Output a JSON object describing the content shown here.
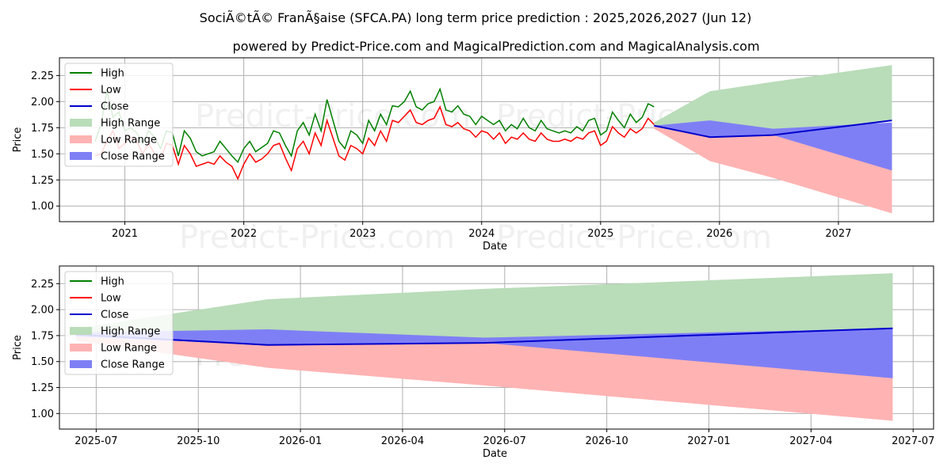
{
  "title": "SociÃ©tÃ© FranÃ§aise (SFCA.PA) long term price prediction : 2025,2026,2027 (Jun 12)",
  "subtitle": "powered by Predict-Price.com and MagicalPrediction.com and MagicalAnalysis.com",
  "watermark": "Predict-Price.com",
  "colors": {
    "high": "#008000",
    "low": "#ff0000",
    "close": "#0000cc",
    "high_range": "#b9dcb9",
    "low_range": "#ffb3b3",
    "close_range": "#7f7ff5",
    "grid": "#b0b0b0"
  },
  "chart_data": [
    {
      "type": "line",
      "panel": "top",
      "xlabel": "Date",
      "ylabel": "Price",
      "xlim": [
        2020.45,
        2027.8
      ],
      "ylim": [
        0.85,
        2.42
      ],
      "x_ticks": [
        2021,
        2022,
        2023,
        2024,
        2025,
        2026,
        2027
      ],
      "x_tick_labels": [
        "2021",
        "2022",
        "2023",
        "2024",
        "2025",
        "2026",
        "2027"
      ],
      "y_ticks": [
        1.0,
        1.25,
        1.5,
        1.75,
        2.0,
        2.25
      ],
      "y_tick_labels": [
        "1.00",
        "1.25",
        "1.50",
        "1.75",
        "2.00",
        "2.25"
      ],
      "legend": [
        "High",
        "Low",
        "Close",
        "High Range",
        "Low Range",
        "Close Range"
      ],
      "legend_position": "top-left",
      "history": {
        "x": [
          2020.75,
          2020.8,
          2020.85,
          2020.9,
          2020.95,
          2021.0,
          2021.05,
          2021.1,
          2021.15,
          2021.2,
          2021.25,
          2021.3,
          2021.35,
          2021.4,
          2021.45,
          2021.5,
          2021.55,
          2021.6,
          2021.65,
          2021.7,
          2021.75,
          2021.8,
          2021.85,
          2021.9,
          2021.95,
          2022.0,
          2022.05,
          2022.1,
          2022.15,
          2022.2,
          2022.25,
          2022.3,
          2022.35,
          2022.4,
          2022.45,
          2022.5,
          2022.55,
          2022.6,
          2022.65,
          2022.7,
          2022.75,
          2022.8,
          2022.85,
          2022.9,
          2022.95,
          2023.0,
          2023.05,
          2023.1,
          2023.15,
          2023.2,
          2023.25,
          2023.3,
          2023.35,
          2023.4,
          2023.45,
          2023.5,
          2023.55,
          2023.6,
          2023.65,
          2023.7,
          2023.75,
          2023.8,
          2023.85,
          2023.9,
          2023.95,
          2024.0,
          2024.05,
          2024.1,
          2024.15,
          2024.2,
          2024.25,
          2024.3,
          2024.35,
          2024.4,
          2024.45,
          2024.5,
          2024.55,
          2024.6,
          2024.65,
          2024.7,
          2024.75,
          2024.8,
          2024.85,
          2024.9,
          2024.95,
          2025.0,
          2025.05,
          2025.1,
          2025.15,
          2025.2,
          2025.25,
          2025.3,
          2025.35,
          2025.4,
          2025.45
        ],
        "high": [
          1.62,
          1.78,
          2.1,
          1.85,
          1.9,
          1.72,
          1.75,
          1.7,
          1.6,
          1.72,
          1.66,
          1.55,
          1.72,
          1.7,
          1.48,
          1.72,
          1.65,
          1.52,
          1.48,
          1.5,
          1.52,
          1.62,
          1.55,
          1.48,
          1.42,
          1.55,
          1.62,
          1.52,
          1.56,
          1.6,
          1.72,
          1.7,
          1.58,
          1.48,
          1.72,
          1.8,
          1.68,
          1.88,
          1.72,
          2.02,
          1.82,
          1.62,
          1.55,
          1.72,
          1.68,
          1.6,
          1.82,
          1.72,
          1.88,
          1.78,
          1.96,
          1.95,
          2.0,
          2.1,
          1.95,
          1.92,
          1.98,
          2.0,
          2.12,
          1.92,
          1.9,
          1.96,
          1.88,
          1.86,
          1.78,
          1.86,
          1.82,
          1.78,
          1.82,
          1.72,
          1.78,
          1.74,
          1.84,
          1.75,
          1.72,
          1.82,
          1.74,
          1.72,
          1.7,
          1.72,
          1.7,
          1.76,
          1.72,
          1.82,
          1.84,
          1.68,
          1.72,
          1.9,
          1.82,
          1.75,
          1.88,
          1.8,
          1.85,
          1.98,
          1.95
        ],
        "low": [
          1.48,
          1.5,
          1.62,
          1.72,
          1.55,
          1.6,
          1.66,
          1.62,
          1.5,
          1.6,
          1.5,
          1.45,
          1.6,
          1.58,
          1.4,
          1.58,
          1.5,
          1.38,
          1.4,
          1.42,
          1.4,
          1.48,
          1.42,
          1.38,
          1.26,
          1.4,
          1.5,
          1.42,
          1.45,
          1.5,
          1.58,
          1.6,
          1.46,
          1.34,
          1.55,
          1.62,
          1.5,
          1.7,
          1.58,
          1.82,
          1.65,
          1.48,
          1.44,
          1.58,
          1.55,
          1.5,
          1.65,
          1.58,
          1.72,
          1.62,
          1.82,
          1.8,
          1.86,
          1.92,
          1.8,
          1.78,
          1.82,
          1.84,
          1.95,
          1.78,
          1.76,
          1.8,
          1.74,
          1.72,
          1.66,
          1.72,
          1.7,
          1.64,
          1.7,
          1.6,
          1.66,
          1.64,
          1.7,
          1.64,
          1.62,
          1.7,
          1.64,
          1.62,
          1.62,
          1.64,
          1.62,
          1.66,
          1.64,
          1.7,
          1.72,
          1.58,
          1.62,
          1.76,
          1.7,
          1.66,
          1.74,
          1.7,
          1.74,
          1.84,
          1.78
        ]
      },
      "forecast": {
        "x": [
          2025.45,
          2025.92,
          2026.45,
          2027.45
        ],
        "high_range": {
          "upper": [
            1.8,
            2.1,
            2.19,
            2.35
          ],
          "lower": [
            1.76,
            1.66,
            1.68,
            1.82
          ]
        },
        "low_range": {
          "upper": [
            1.76,
            1.66,
            1.68,
            1.8
          ],
          "lower": [
            1.74,
            1.43,
            1.27,
            0.93
          ]
        },
        "close_range": {
          "upper": [
            1.77,
            1.82,
            1.74,
            1.8
          ],
          "lower": [
            1.76,
            1.66,
            1.68,
            1.34
          ]
        },
        "close": [
          1.77,
          1.66,
          1.68,
          1.82
        ]
      }
    },
    {
      "type": "line",
      "panel": "bottom",
      "xlabel": "Date",
      "ylabel": "Price",
      "xlim": [
        2025.41,
        2027.55
      ],
      "ylim": [
        0.85,
        2.42
      ],
      "x_ticks": [
        2025.5,
        2025.75,
        2026.0,
        2026.25,
        2026.5,
        2026.75,
        2027.0,
        2027.25,
        2027.5
      ],
      "x_tick_labels": [
        "2025-07",
        "2025-10",
        "2026-01",
        "2026-04",
        "2026-07",
        "2026-10",
        "2027-01",
        "2027-04",
        "2027-07"
      ],
      "y_ticks": [
        1.0,
        1.25,
        1.5,
        1.75,
        2.0,
        2.25
      ],
      "y_tick_labels": [
        "1.00",
        "1.25",
        "1.50",
        "1.75",
        "2.00",
        "2.25"
      ],
      "legend": [
        "High",
        "Low",
        "Close",
        "High Range",
        "Low Range",
        "Close Range"
      ],
      "legend_position": "top-left",
      "forecast": {
        "x": [
          2025.45,
          2025.92,
          2026.45,
          2027.45
        ],
        "high_range": {
          "upper": [
            1.82,
            2.1,
            2.2,
            2.35
          ],
          "lower": [
            1.76,
            1.66,
            1.68,
            1.82
          ]
        },
        "low_range": {
          "upper": [
            1.74,
            1.66,
            1.68,
            1.82
          ],
          "lower": [
            1.7,
            1.44,
            1.27,
            0.93
          ]
        },
        "close_range": {
          "upper": [
            1.78,
            1.81,
            1.73,
            1.82
          ],
          "lower": [
            1.74,
            1.66,
            1.68,
            1.34
          ]
        },
        "close": [
          1.76,
          1.66,
          1.68,
          1.82
        ]
      }
    }
  ]
}
